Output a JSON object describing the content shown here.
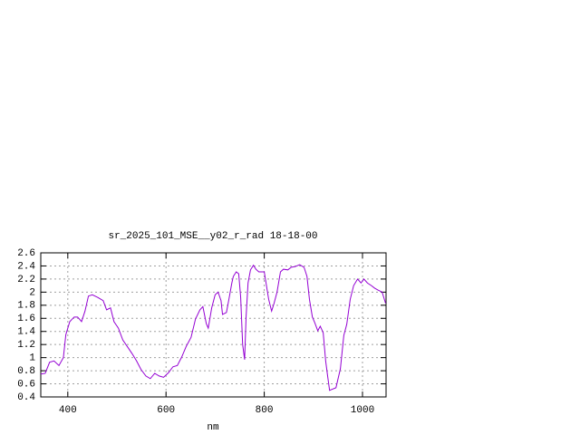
{
  "chart_data": {
    "type": "line",
    "title": "sr_2025_101_MSE__y02_r_rad 18-18-00",
    "x_label": "nm",
    "x": [
      345,
      354,
      363,
      372,
      382,
      391,
      396,
      404,
      413,
      420,
      428,
      435,
      442,
      450,
      461,
      472,
      479,
      487,
      494,
      503,
      512,
      522,
      531,
      540,
      549,
      559,
      568,
      577,
      586,
      595,
      605,
      614,
      623,
      632,
      641,
      651,
      660,
      669,
      675,
      682,
      686,
      693,
      700,
      706,
      712,
      715,
      723,
      728,
      734,
      737,
      743,
      748,
      752,
      756,
      760,
      763,
      767,
      772,
      778,
      783,
      789,
      800,
      803,
      809,
      815,
      820,
      826,
      833,
      839,
      848,
      855,
      863,
      872,
      881,
      887,
      892,
      898,
      903,
      909,
      914,
      920,
      925,
      929,
      933,
      936,
      946,
      955,
      962,
      968,
      975,
      982,
      990,
      997,
      1003,
      1010,
      1018,
      1025,
      1032,
      1040,
      1047
    ],
    "series": [
      {
        "name": "sr_2025_101_MSE__y02_r_rad",
        "color": "#9400d3",
        "values": [
          0.75,
          0.76,
          0.93,
          0.95,
          0.88,
          1.0,
          1.35,
          1.55,
          1.62,
          1.62,
          1.55,
          1.71,
          1.94,
          1.96,
          1.92,
          1.87,
          1.73,
          1.76,
          1.55,
          1.45,
          1.27,
          1.16,
          1.06,
          0.95,
          0.82,
          0.72,
          0.68,
          0.76,
          0.72,
          0.7,
          0.77,
          0.86,
          0.88,
          1.01,
          1.17,
          1.31,
          1.59,
          1.73,
          1.78,
          1.52,
          1.45,
          1.76,
          1.96,
          2.0,
          1.87,
          1.66,
          1.69,
          1.89,
          2.14,
          2.24,
          2.31,
          2.28,
          1.92,
          1.2,
          0.97,
          1.62,
          2.14,
          2.34,
          2.41,
          2.35,
          2.31,
          2.31,
          2.17,
          1.89,
          1.71,
          1.83,
          2.0,
          2.31,
          2.35,
          2.34,
          2.38,
          2.39,
          2.42,
          2.38,
          2.24,
          1.89,
          1.62,
          1.53,
          1.41,
          1.48,
          1.38,
          0.95,
          0.72,
          0.5,
          0.51,
          0.54,
          0.83,
          1.34,
          1.51,
          1.89,
          2.1,
          2.2,
          2.14,
          2.2,
          2.14,
          2.1,
          2.06,
          2.03,
          2.0,
          1.83
        ]
      }
    ],
    "xlim": [
      345,
      1048
    ],
    "xticks": [
      400,
      600,
      800,
      1000
    ],
    "ylim": [
      0.4,
      2.6
    ],
    "yticks": [
      0.4,
      0.6,
      0.8,
      1,
      1.2,
      1.4,
      1.6,
      1.8,
      2,
      2.2,
      2.4,
      2.6
    ],
    "grid": true
  }
}
